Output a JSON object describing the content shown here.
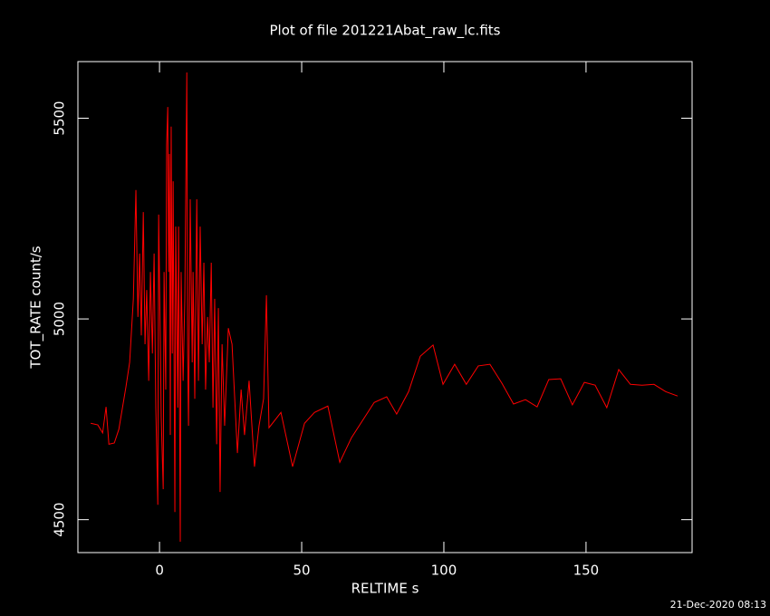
{
  "chart_data": {
    "type": "line",
    "title": "Plot of file 201221Abat_raw_lc.fits",
    "x_label": "RELTIME  s",
    "y_label": "TOT_RATE  count/s",
    "footer": "21-Dec-2020 08:13",
    "color": "#ff0000",
    "xlim": [
      -28.7,
      187.3
    ],
    "ylim": [
      4418,
      5641
    ],
    "xticks": [
      0,
      50,
      100,
      150
    ],
    "yticks": [
      4500,
      5000,
      5500
    ],
    "x": [
      -24.2,
      -21.7,
      -20,
      -18.8,
      -17.8,
      -15.9,
      -14.3,
      -11.8,
      -10.5,
      -9.2,
      -8.3,
      -7.6,
      -7,
      -6.4,
      -5.7,
      -5.1,
      -4.5,
      -3.8,
      -3.2,
      -2.5,
      -1.9,
      -1.3,
      -0.6,
      -0.3,
      0.3,
      0.6,
      1.3,
      1.6,
      2.2,
      2.5,
      2.9,
      3.2,
      3.5,
      3.8,
      4.1,
      4.5,
      4.8,
      5.4,
      5.7,
      6.4,
      6.7,
      7.3,
      7.6,
      8.3,
      8.9,
      9.6,
      9.9,
      10.2,
      10.8,
      11.5,
      11.8,
      12.4,
      13.1,
      13.7,
      14.3,
      15,
      15.6,
      16.2,
      16.9,
      17.5,
      18.2,
      18.8,
      19.4,
      20.1,
      20.7,
      21.3,
      22,
      22.9,
      24.2,
      25.5,
      27.4,
      28.7,
      29.9,
      31.5,
      33.4,
      35,
      36.6,
      37.6,
      38.5,
      42.7,
      46.8,
      51,
      54.5,
      59.2,
      63.4,
      67.5,
      75.5,
      79.9,
      83.4,
      87.6,
      91.7,
      96.2,
      99.7,
      103.8,
      107.9,
      112.1,
      116.2,
      120.4,
      124.5,
      128.7,
      132.8,
      136.9,
      141.1,
      145.2,
      149.4,
      153.2,
      157.3,
      161.5,
      165.6,
      169.7,
      173.9,
      178,
      182.2
    ],
    "values": [
      4740,
      4736,
      4716,
      4781,
      4688,
      4691,
      4725,
      4831,
      4892,
      5050,
      5321,
      5005,
      5163,
      4959,
      5266,
      4937,
      5072,
      4846,
      5117,
      4914,
      5163,
      4779,
      4537,
      5260,
      4937,
      4756,
      4576,
      5117,
      4824,
      5433,
      5528,
      5117,
      5411,
      4711,
      5479,
      4914,
      5343,
      4519,
      5230,
      4779,
      5230,
      4445,
      5117,
      4846,
      5050,
      5614,
      4914,
      4734,
      5298,
      4892,
      5117,
      4801,
      5298,
      4846,
      5230,
      4937,
      5140,
      4824,
      5005,
      4892,
      5140,
      4779,
      5050,
      4688,
      5027,
      4569,
      4937,
      4734,
      4977,
      4937,
      4666,
      4824,
      4711,
      4846,
      4632,
      4734,
      4801,
      5059,
      4729,
      4767,
      4632,
      4740,
      4767,
      4783,
      4643,
      4704,
      4792,
      4806,
      4763,
      4819,
      4907,
      4935,
      4837,
      4887,
      4837,
      4883,
      4887,
      4840,
      4788,
      4799,
      4781,
      4849,
      4851,
      4786,
      4842,
      4835,
      4779,
      4874,
      4837,
      4835,
      4837,
      4819,
      4808
    ]
  }
}
